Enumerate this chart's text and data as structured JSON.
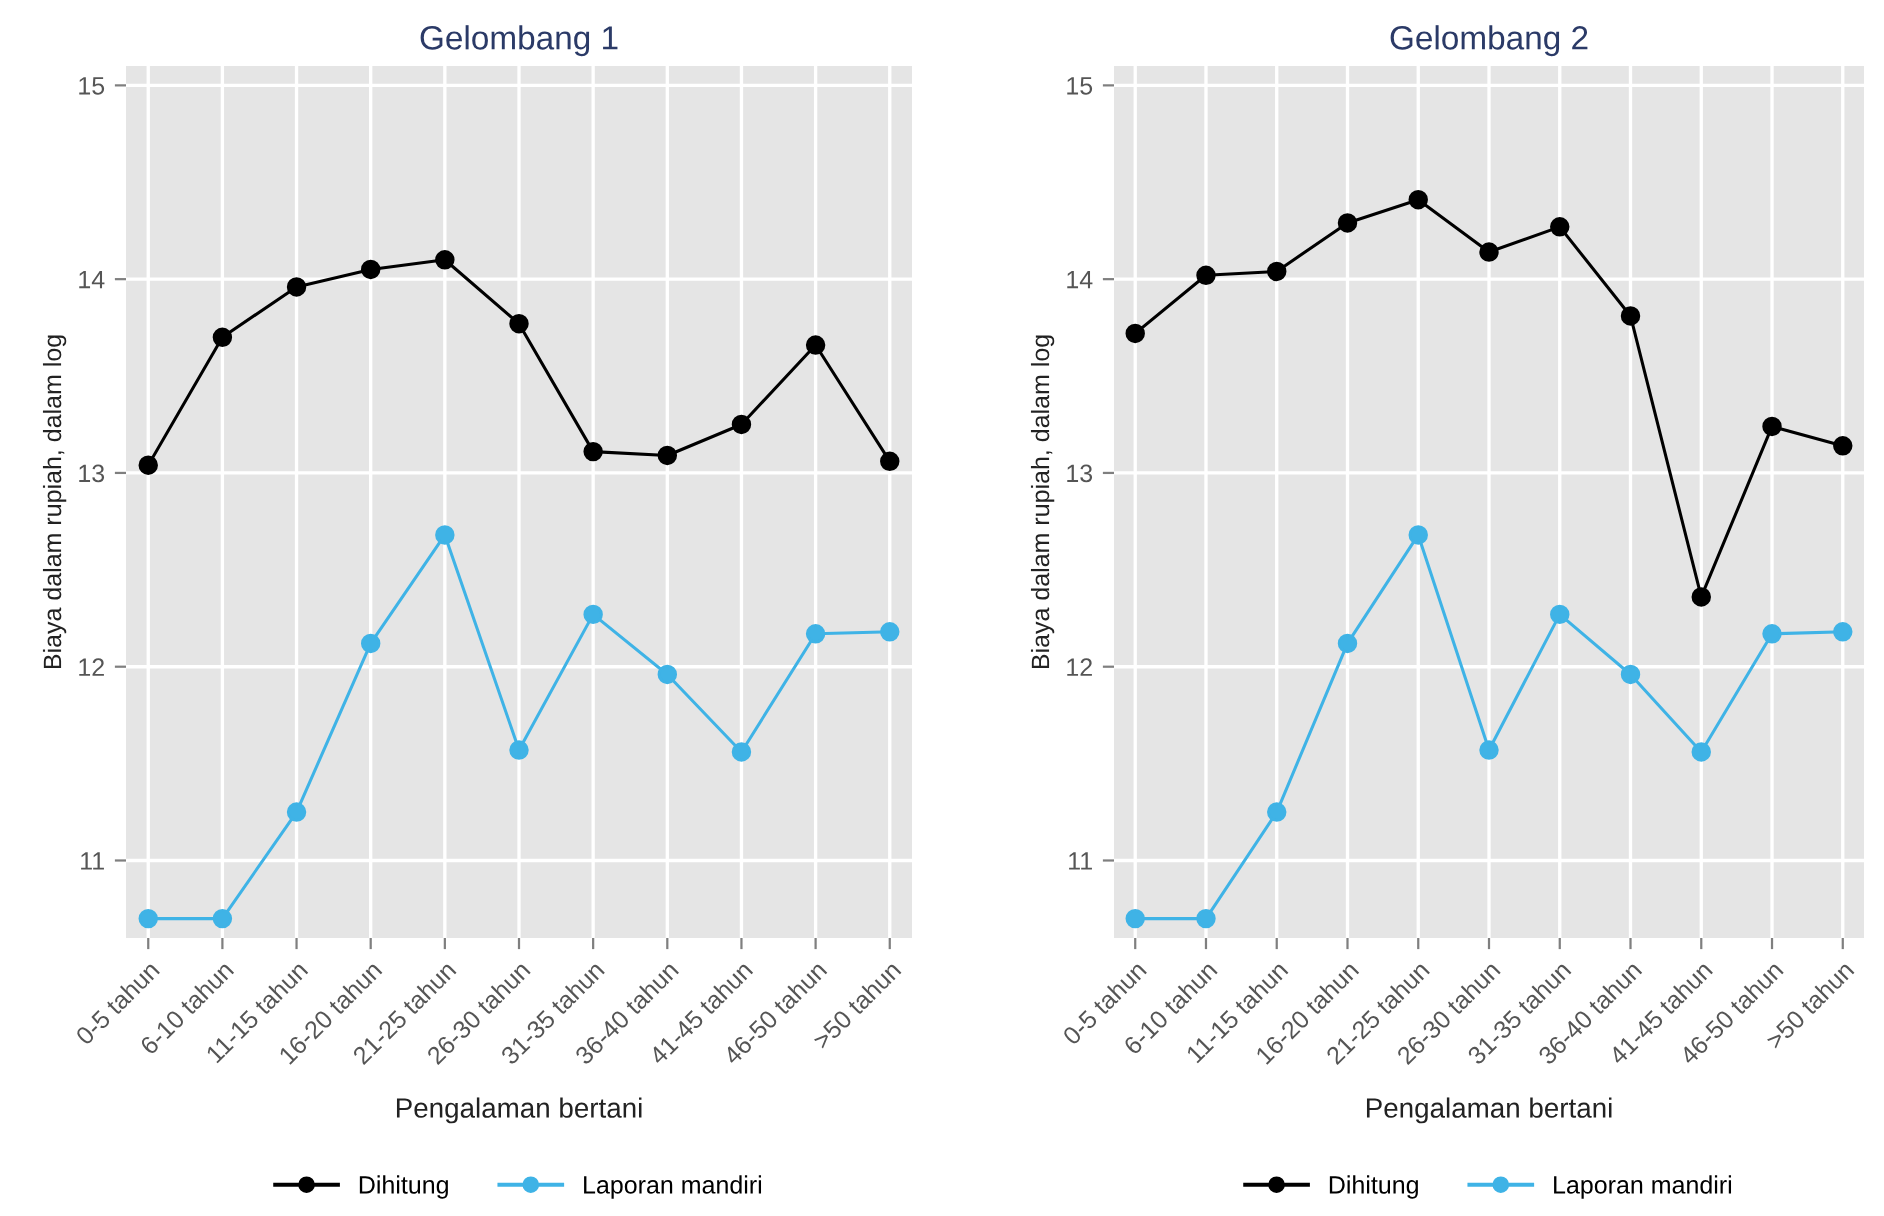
{
  "chart_data": [
    {
      "type": "line",
      "title": "Gelombang 1",
      "xlabel": "Pengalaman bertani",
      "ylabel": "Biaya dalam rupiah, dalam log",
      "categories": [
        "0-5 tahun",
        "6-10 tahun",
        "11-15 tahun",
        "16-20 tahun",
        "21-25 tahun",
        "26-30 tahun",
        "31-35 tahun",
        "36-40 tahun",
        "41-45 tahun",
        "46-50 tahun",
        ">50 tahun"
      ],
      "series": [
        {
          "name": "Dihitung",
          "color": "#000000",
          "values": [
            13.04,
            13.7,
            13.96,
            14.05,
            14.1,
            13.77,
            13.11,
            13.09,
            13.25,
            13.66,
            13.06
          ]
        },
        {
          "name": "Laporan mandiri",
          "color": "#3fb3e6",
          "values": [
            10.7,
            10.7,
            11.25,
            12.12,
            12.68,
            11.57,
            12.27,
            11.96,
            11.56,
            12.17,
            12.18
          ]
        }
      ],
      "ylim": [
        10.6,
        15.1
      ],
      "yticks": [
        11,
        12,
        13,
        14,
        15
      ],
      "grid": true,
      "legend": "bottom",
      "marker": "circle",
      "line_style": "solid"
    },
    {
      "type": "line",
      "title": "Gelombang 2",
      "xlabel": "Pengalaman bertani",
      "ylabel": "Biaya dalam rupiah, dalam log",
      "categories": [
        "0-5 tahun",
        "6-10 tahun",
        "11-15 tahun",
        "16-20 tahun",
        "21-25 tahun",
        "26-30 tahun",
        "31-35 tahun",
        "36-40 tahun",
        "41-45 tahun",
        "46-50 tahun",
        ">50 tahun"
      ],
      "series": [
        {
          "name": "Dihitung",
          "color": "#000000",
          "values": [
            13.72,
            14.02,
            14.04,
            14.29,
            14.41,
            14.14,
            14.27,
            13.81,
            12.36,
            13.24,
            13.14
          ]
        },
        {
          "name": "Laporan mandiri",
          "color": "#3fb3e6",
          "values": [
            10.7,
            10.7,
            11.25,
            12.12,
            12.68,
            11.57,
            12.27,
            11.96,
            11.56,
            12.17,
            12.18
          ]
        }
      ],
      "ylim": [
        10.6,
        15.1
      ],
      "yticks": [
        11,
        12,
        13,
        14,
        15
      ],
      "grid": true,
      "legend": "bottom",
      "marker": "circle",
      "line_style": "solid"
    }
  ]
}
